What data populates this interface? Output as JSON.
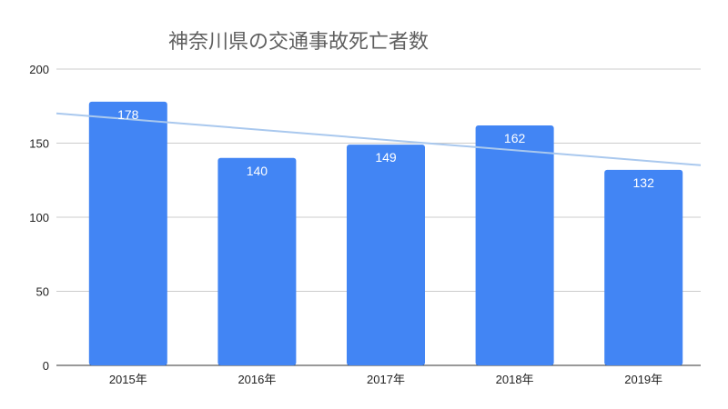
{
  "chart_data": {
    "type": "bar",
    "title": "神奈川県の交通事故死亡者数",
    "categories": [
      "2015年",
      "2016年",
      "2017年",
      "2018年",
      "2019年"
    ],
    "series": [
      {
        "values": [
          178,
          140,
          149,
          162,
          132
        ],
        "color": "#4285f4"
      }
    ],
    "data_labels": [
      "178",
      "140",
      "149",
      "162",
      "132"
    ],
    "y_ticks": [
      "0",
      "50",
      "100",
      "150",
      "200"
    ],
    "ylim": [
      0,
      200
    ],
    "grid": true,
    "legend": "none",
    "trendline": {
      "type": "linear",
      "color": "#a9c8ee"
    },
    "xlabel": "",
    "ylabel": ""
  }
}
